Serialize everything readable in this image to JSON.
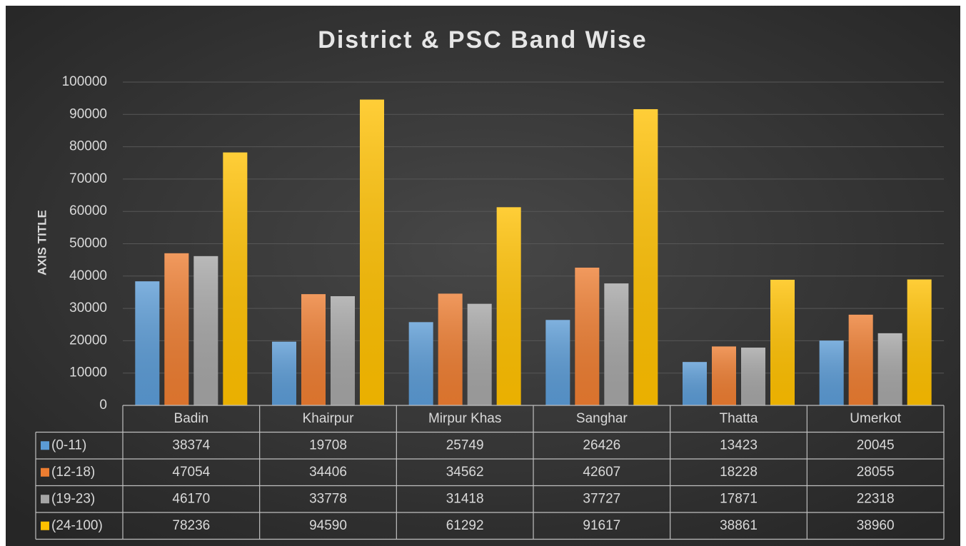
{
  "chart_data": {
    "type": "bar",
    "title": "District & PSC Band Wise",
    "y_axis_label": "AXIS TITLE",
    "categories": [
      "Badin",
      "Khairpur",
      "Mirpur Khas",
      "Sanghar",
      "Thatta",
      "Umerkot"
    ],
    "series": [
      {
        "name": "(0-11)",
        "color": "#5b9bd5",
        "values": [
          38374,
          19708,
          25749,
          26426,
          13423,
          20045
        ]
      },
      {
        "name": "(12-18)",
        "color": "#ed7d31",
        "values": [
          47054,
          34406,
          34562,
          42607,
          18228,
          28055
        ]
      },
      {
        "name": "(19-23)",
        "color": "#a5a5a5",
        "values": [
          46170,
          33778,
          31418,
          37727,
          17871,
          22318
        ]
      },
      {
        "name": "(24-100)",
        "color": "#ffc000",
        "values": [
          78236,
          94590,
          61292,
          91617,
          38861,
          38960
        ]
      }
    ],
    "ylim": [
      0,
      100000
    ],
    "yticks": [
      0,
      10000,
      20000,
      30000,
      40000,
      50000,
      60000,
      70000,
      80000,
      90000,
      100000
    ],
    "grid": true,
    "data_table": true
  }
}
